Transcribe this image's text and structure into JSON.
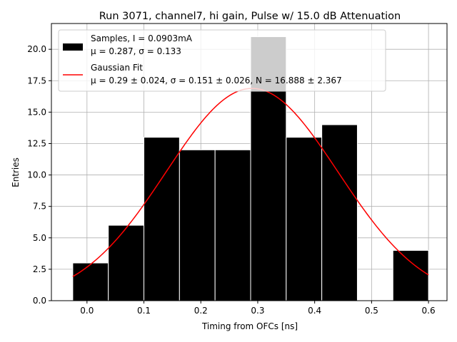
{
  "chart_data": {
    "type": "bar",
    "title": "Run 3071, channel7, hi gain, Pulse w/ 15.0 dB Attenuation",
    "xlabel": "Timing from OFCs [ns]",
    "ylabel": "Entries",
    "xlim": [
      -0.0625,
      0.6325
    ],
    "ylim": [
      0,
      22.05
    ],
    "xticks": [
      0.0,
      0.1,
      0.2,
      0.3,
      0.4,
      0.5,
      0.6
    ],
    "xtick_labels": [
      "0.0",
      "0.1",
      "0.2",
      "0.3",
      "0.4",
      "0.5",
      "0.6"
    ],
    "yticks": [
      0.0,
      2.5,
      5.0,
      7.5,
      10.0,
      12.5,
      15.0,
      17.5,
      20.0
    ],
    "ytick_labels": [
      "0.0",
      "2.5",
      "5.0",
      "7.5",
      "10.0",
      "12.5",
      "15.0",
      "17.5",
      "20.0"
    ],
    "grid": true,
    "legend_position": "upper-left",
    "histogram": {
      "name": "Samples, I = 0.0903mA",
      "stats_line": "μ = 0.287, σ = 0.133",
      "color": "#000000",
      "bins": [
        {
          "left": -0.025,
          "right": 0.0375,
          "value": 3
        },
        {
          "left": 0.0375,
          "right": 0.1,
          "value": 6
        },
        {
          "left": 0.1,
          "right": 0.1625,
          "value": 13
        },
        {
          "left": 0.1625,
          "right": 0.225,
          "value": 12
        },
        {
          "left": 0.225,
          "right": 0.2875,
          "value": 12
        },
        {
          "left": 0.2875,
          "right": 0.35,
          "value": 21
        },
        {
          "left": 0.35,
          "right": 0.4125,
          "value": 13
        },
        {
          "left": 0.4125,
          "right": 0.475,
          "value": 14
        },
        {
          "left": 0.475,
          "right": 0.5375,
          "value": 0
        },
        {
          "left": 0.5375,
          "right": 0.6,
          "value": 4
        }
      ]
    },
    "fit": {
      "name": "Gaussian Fit",
      "stats_line": "μ = 0.29 ± 0.024, σ = 0.151 ± 0.026, N = 16.888 ± 2.367",
      "color": "#ff0000",
      "mu": 0.29,
      "sigma": 0.151,
      "N": 16.888,
      "x_range": [
        -0.025,
        0.6
      ]
    }
  }
}
